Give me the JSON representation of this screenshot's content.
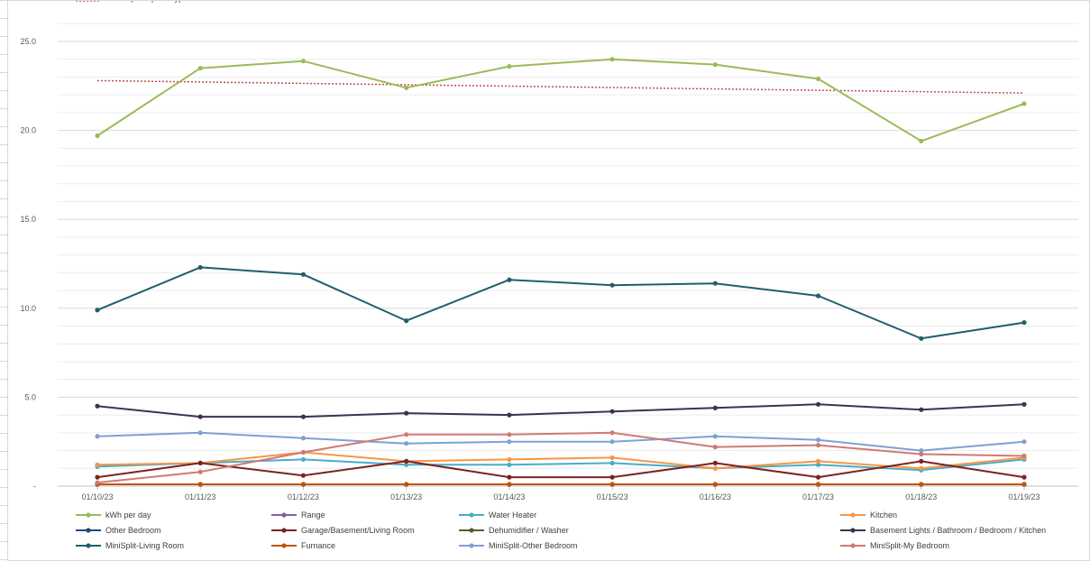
{
  "chart_data": {
    "type": "line",
    "title": "",
    "xlabel": "",
    "ylabel": "",
    "ylim": [
      0,
      25
    ],
    "y_ticks": [
      "-",
      "5.0",
      "10.0",
      "15.0",
      "20.0",
      "25.0"
    ],
    "grid": true,
    "legend_position": "bottom",
    "categories": [
      "01/10/23",
      "01/11/23",
      "01/12/23",
      "01/13/23",
      "01/14/23",
      "01/15/23",
      "01/16/23",
      "01/17/23",
      "01/18/23",
      "01/19/23"
    ],
    "series": [
      {
        "name": "kWh per day",
        "color": "#9bbb59",
        "values": [
          19.7,
          23.5,
          23.9,
          22.4,
          23.6,
          24.0,
          23.7,
          22.9,
          19.4,
          21.5
        ]
      },
      {
        "name": "Range",
        "color": "#8064a2",
        "values": [
          0.1,
          0.1,
          0.1,
          0.1,
          0.1,
          0.1,
          0.1,
          0.1,
          0.1,
          0.1
        ]
      },
      {
        "name": "Water Heater",
        "color": "#4bacc6",
        "values": [
          1.1,
          1.3,
          1.5,
          1.2,
          1.2,
          1.3,
          1.0,
          1.2,
          0.9,
          1.5
        ]
      },
      {
        "name": "Kitchen",
        "color": "#f79646",
        "values": [
          1.2,
          1.3,
          1.9,
          1.4,
          1.5,
          1.6,
          1.0,
          1.4,
          1.0,
          1.6
        ]
      },
      {
        "name": "Other Bedroom",
        "color": "#1f497d",
        "values": [
          0.1,
          0.1,
          0.1,
          0.1,
          0.1,
          0.1,
          0.1,
          0.1,
          0.1,
          0.1
        ]
      },
      {
        "name": "Garage/Basement/Living Room",
        "color": "#7b2323",
        "values": [
          0.5,
          1.3,
          0.6,
          1.4,
          0.5,
          0.5,
          1.3,
          0.5,
          1.4,
          0.5
        ]
      },
      {
        "name": "Dehumidifier / Washer",
        "color": "#4f6228",
        "values": [
          0.1,
          0.1,
          0.1,
          0.1,
          0.1,
          0.1,
          0.1,
          0.1,
          0.1,
          0.1
        ]
      },
      {
        "name": "Basement Lights / Bathroom / Bedroom / Kitchen",
        "color": "#403151",
        "values": [
          4.5,
          3.9,
          3.9,
          4.1,
          4.0,
          4.2,
          4.4,
          4.6,
          4.3,
          4.6
        ]
      },
      {
        "name": "MiniSplit-Living Room",
        "color": "#215e6e",
        "values": [
          9.9,
          12.3,
          11.9,
          9.3,
          11.6,
          11.3,
          11.4,
          10.7,
          8.3,
          9.2
        ]
      },
      {
        "name": "Furnance",
        "color": "#c0540f",
        "values": [
          0.1,
          0.1,
          0.1,
          0.1,
          0.1,
          0.1,
          0.1,
          0.1,
          0.1,
          0.1
        ]
      },
      {
        "name": "MiniSplit-Other Bedroom",
        "color": "#7fa1d3",
        "values": [
          2.8,
          3.0,
          2.7,
          2.4,
          2.5,
          2.5,
          2.8,
          2.6,
          2.0,
          2.5
        ]
      },
      {
        "name": "MiniSplit-My Bedroom",
        "color": "#d07a72",
        "values": [
          0.2,
          0.8,
          1.9,
          2.9,
          2.9,
          3.0,
          2.2,
          2.3,
          1.8,
          1.7
        ]
      }
    ],
    "trendline": {
      "name": "Linear (kWh per day)",
      "color": "#c0504d",
      "start": 22.8,
      "end": 22.1
    }
  }
}
